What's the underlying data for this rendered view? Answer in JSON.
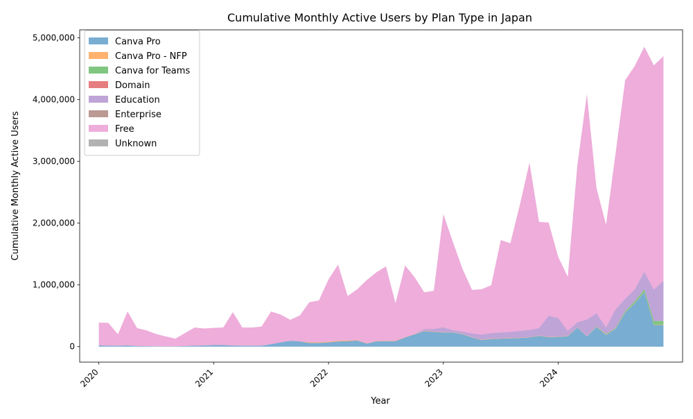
{
  "chart_data": {
    "type": "area",
    "stacked": true,
    "title": "Cumulative Monthly Active Users by Plan Type in Japan",
    "xlabel": "Year",
    "ylabel": "Cumulative Monthly Active Users",
    "x_tick_labels": [
      "2020",
      "2021",
      "2022",
      "2023",
      "2024"
    ],
    "x_tick_values": [
      "2020-01",
      "2021-01",
      "2022-01",
      "2023-01",
      "2024-01"
    ],
    "y_tick_labels": [
      "0",
      "1,000,000",
      "2,000,000",
      "3,000,000",
      "4,000,000",
      "5,000,000"
    ],
    "y_tick_values": [
      0,
      1000000,
      2000000,
      3000000,
      4000000,
      5000000
    ],
    "ylim": [
      -250000,
      5130000
    ],
    "xlim": [
      "2019-11",
      "2025-02"
    ],
    "grid": false,
    "legend_position": "top-left",
    "x": [
      "2020-01",
      "2020-02",
      "2020-03",
      "2020-04",
      "2020-05",
      "2020-06",
      "2020-07",
      "2020-08",
      "2020-09",
      "2020-10",
      "2020-11",
      "2020-12",
      "2021-01",
      "2021-02",
      "2021-03",
      "2021-04",
      "2021-05",
      "2021-06",
      "2021-07",
      "2021-08",
      "2021-09",
      "2021-10",
      "2021-11",
      "2021-12",
      "2022-01",
      "2022-02",
      "2022-03",
      "2022-04",
      "2022-05",
      "2022-06",
      "2022-07",
      "2022-08",
      "2022-09",
      "2022-10",
      "2022-11",
      "2022-12",
      "2023-01",
      "2023-02",
      "2023-03",
      "2023-04",
      "2023-05",
      "2023-06",
      "2023-07",
      "2023-08",
      "2023-09",
      "2023-10",
      "2023-11",
      "2023-12",
      "2024-01",
      "2024-02",
      "2024-03",
      "2024-04",
      "2024-05",
      "2024-06",
      "2024-07",
      "2024-08",
      "2024-09",
      "2024-10",
      "2024-11",
      "2024-12"
    ],
    "series": [
      {
        "name": "Canva Pro",
        "color": "#1f77b4",
        "values": [
          20000,
          15000,
          15000,
          20000,
          10000,
          8000,
          5000,
          5000,
          5000,
          10000,
          15000,
          20000,
          25000,
          25000,
          18000,
          15000,
          15000,
          15000,
          40000,
          70000,
          95000,
          85000,
          60000,
          60000,
          70000,
          85000,
          90000,
          100000,
          50000,
          85000,
          90000,
          90000,
          150000,
          200000,
          250000,
          240000,
          230000,
          230000,
          200000,
          150000,
          110000,
          125000,
          130000,
          135000,
          140000,
          150000,
          175000,
          155000,
          160000,
          170000,
          310000,
          165000,
          320000,
          190000,
          290000,
          550000,
          700000,
          880000,
          350000,
          350000
        ]
      },
      {
        "name": "Canva Pro - NFP",
        "color": "#ff7f0e",
        "values": [
          0,
          0,
          0,
          0,
          0,
          0,
          0,
          0,
          0,
          0,
          0,
          0,
          0,
          0,
          0,
          0,
          0,
          0,
          0,
          0,
          0,
          0,
          10000,
          10000,
          10000,
          10000,
          10000,
          5000,
          5000,
          5000,
          5000,
          5000,
          5000,
          5000,
          5000,
          5000,
          5000,
          5000,
          5000,
          5000,
          5000,
          5000,
          5000,
          5000,
          5000,
          5000,
          5000,
          5000,
          5000,
          5000,
          5000,
          5000,
          5000,
          5000,
          5000,
          5000,
          5000,
          5000,
          5000,
          5000
        ]
      },
      {
        "name": "Canva for Teams",
        "color": "#2ca02c",
        "values": [
          0,
          0,
          0,
          0,
          0,
          0,
          0,
          0,
          0,
          0,
          0,
          0,
          0,
          0,
          0,
          0,
          0,
          0,
          0,
          0,
          0,
          0,
          0,
          0,
          0,
          0,
          0,
          0,
          0,
          0,
          0,
          0,
          0,
          0,
          0,
          0,
          0,
          0,
          0,
          0,
          0,
          0,
          0,
          0,
          0,
          0,
          0,
          0,
          0,
          0,
          0,
          0,
          5000,
          10000,
          10000,
          20000,
          30000,
          40000,
          60000,
          60000
        ]
      },
      {
        "name": "Domain",
        "color": "#d62728",
        "values": [
          0,
          0,
          0,
          0,
          0,
          0,
          0,
          0,
          0,
          0,
          0,
          0,
          0,
          0,
          0,
          0,
          0,
          0,
          0,
          0,
          0,
          0,
          0,
          0,
          0,
          0,
          0,
          0,
          0,
          0,
          0,
          0,
          0,
          0,
          0,
          0,
          0,
          0,
          0,
          0,
          0,
          0,
          0,
          0,
          0,
          0,
          0,
          0,
          0,
          0,
          0,
          0,
          0,
          0,
          0,
          0,
          0,
          0,
          0,
          0
        ]
      },
      {
        "name": "Education",
        "color": "#9467bd",
        "values": [
          0,
          0,
          0,
          0,
          0,
          0,
          0,
          0,
          0,
          0,
          0,
          0,
          0,
          0,
          0,
          0,
          0,
          0,
          0,
          0,
          0,
          0,
          0,
          0,
          0,
          0,
          0,
          0,
          0,
          0,
          0,
          0,
          0,
          0,
          30000,
          40000,
          80000,
          30000,
          40000,
          60000,
          80000,
          90000,
          95000,
          100000,
          110000,
          115000,
          120000,
          340000,
          300000,
          80000,
          80000,
          270000,
          210000,
          110000,
          300000,
          200000,
          190000,
          290000,
          510000,
          650000
        ]
      },
      {
        "name": "Enterprise",
        "color": "#8c564b",
        "values": [
          0,
          0,
          0,
          0,
          0,
          0,
          0,
          0,
          0,
          0,
          0,
          0,
          0,
          0,
          0,
          0,
          0,
          0,
          0,
          0,
          0,
          0,
          0,
          0,
          0,
          0,
          0,
          0,
          0,
          0,
          0,
          0,
          0,
          0,
          0,
          0,
          0,
          0,
          0,
          0,
          0,
          0,
          0,
          0,
          0,
          0,
          0,
          0,
          0,
          0,
          0,
          0,
          0,
          0,
          0,
          0,
          0,
          0,
          0,
          0
        ]
      },
      {
        "name": "Free",
        "color": "#e377c2",
        "values": [
          370000,
          370000,
          185000,
          550000,
          290000,
          255000,
          200000,
          160000,
          125000,
          210000,
          295000,
          275000,
          280000,
          285000,
          540000,
          295000,
          295000,
          310000,
          530000,
          450000,
          340000,
          420000,
          650000,
          680000,
          1010000,
          1235000,
          720000,
          825000,
          1025000,
          1115000,
          1205000,
          610000,
          1160000,
          920000,
          595000,
          620000,
          1830000,
          1430000,
          1015000,
          705000,
          735000,
          775000,
          1495000,
          1435000,
          2045000,
          2710000,
          1720000,
          1510000,
          990000,
          875000,
          2540000,
          3650000,
          2030000,
          1660000,
          2530000,
          3540000,
          3620000,
          3640000,
          3630000,
          3640000
        ]
      },
      {
        "name": "Unknown",
        "color": "#7f7f7f",
        "values": [
          0,
          0,
          0,
          0,
          0,
          0,
          0,
          0,
          0,
          0,
          0,
          0,
          0,
          0,
          0,
          0,
          0,
          0,
          0,
          0,
          0,
          0,
          0,
          0,
          0,
          0,
          0,
          0,
          0,
          0,
          0,
          0,
          0,
          0,
          0,
          0,
          0,
          0,
          0,
          0,
          0,
          0,
          0,
          0,
          0,
          0,
          0,
          0,
          0,
          0,
          0,
          0,
          0,
          0,
          0,
          0,
          0,
          0,
          0,
          0
        ]
      }
    ]
  }
}
